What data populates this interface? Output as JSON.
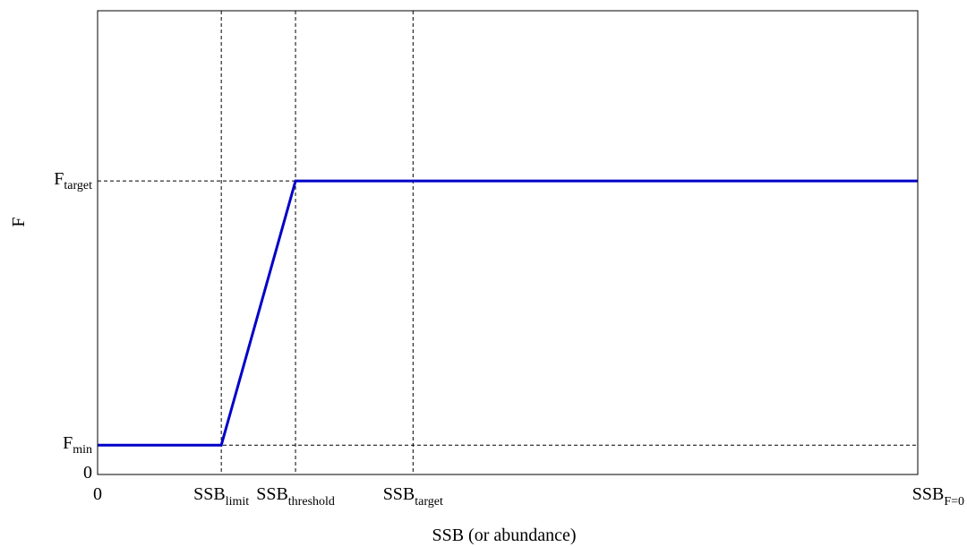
{
  "chart_data": {
    "type": "line",
    "title": "",
    "xlabel": "SSB (or abundance)",
    "ylabel": "F",
    "x_ticks": [
      {
        "base": "0",
        "sub": "",
        "x": 0
      },
      {
        "base": "SSB",
        "sub": "limit",
        "x": 1
      },
      {
        "base": "SSB",
        "sub": "threshold",
        "x": 1.6
      },
      {
        "base": "SSB",
        "sub": "target",
        "x": 2.55
      },
      {
        "base": "SSB",
        "sub": "F=0",
        "x": 6
      }
    ],
    "y_ticks": [
      {
        "base": "0",
        "sub": "",
        "y": 0
      },
      {
        "base": "F",
        "sub": "min",
        "y": 0.1
      },
      {
        "base": "F",
        "sub": "target",
        "y": 1
      }
    ],
    "xlim": [
      0,
      6.63
    ],
    "ylim": [
      0,
      1.58
    ],
    "reference_lines": {
      "vertical": [
        1,
        1.6,
        2.55
      ],
      "horizontal": [
        0.1,
        1
      ]
    },
    "series": [
      {
        "color": "#0000c8",
        "points": [
          {
            "x": 0,
            "y": 0.1
          },
          {
            "x": 1,
            "y": 0.1
          },
          {
            "x": 1.6,
            "y": 1
          },
          {
            "x": 6.63,
            "y": 1
          }
        ]
      }
    ],
    "grid": false,
    "legend": "none"
  }
}
